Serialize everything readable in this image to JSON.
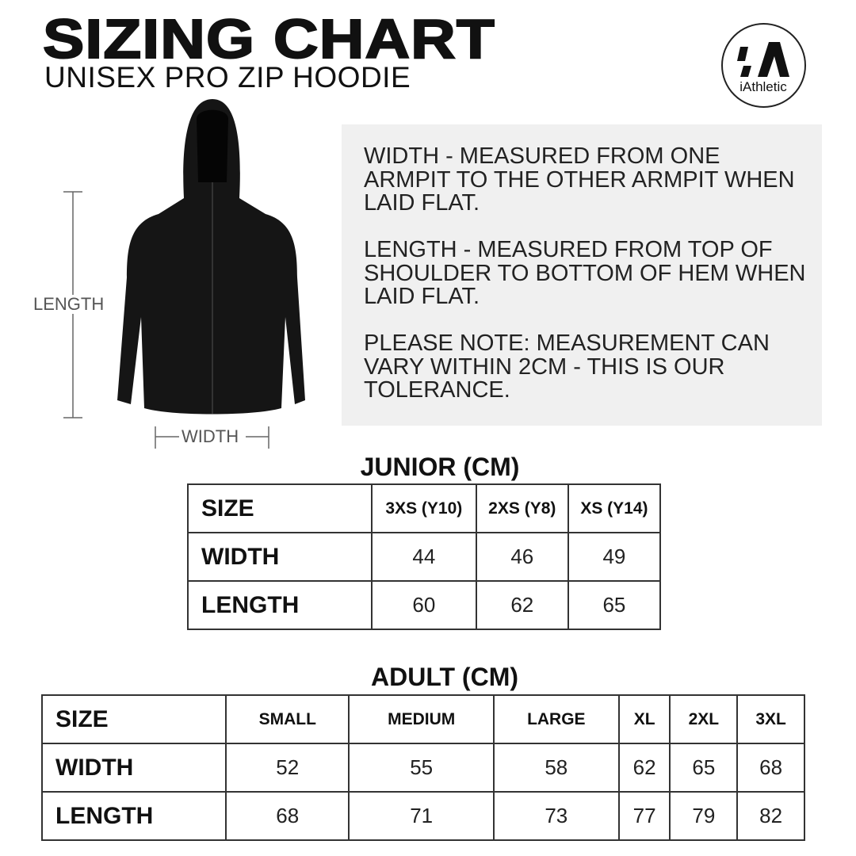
{
  "header": {
    "title": "SIZING CHART",
    "subtitle": "UNISEX PRO ZIP HOODIE"
  },
  "logo": {
    "text": "iAthletic",
    "mark": "iA"
  },
  "diagram": {
    "length_label": "LENGTH",
    "width_label": "WIDTH"
  },
  "info": [
    "WIDTH - MEASURED FROM ONE ARMPIT TO THE OTHER ARMPIT WHEN LAID FLAT.",
    "LENGTH - MEASURED FROM TOP OF SHOULDER TO BOTTOM OF HEM WHEN LAID FLAT.",
    "PLEASE NOTE: MEASUREMENT CAN VARY WITHIN 2CM - THIS IS OUR TOLERANCE."
  ],
  "junior": {
    "title": "JUNIOR (CM)",
    "headers": [
      "SIZE",
      "3XS (Y10)",
      "2XS (Y8)",
      "XS (Y14)"
    ],
    "rows": [
      [
        "WIDTH",
        "44",
        "46",
        "49"
      ],
      [
        "LENGTH",
        "60",
        "62",
        "65"
      ]
    ]
  },
  "adult": {
    "title": "ADULT (CM)",
    "headers": [
      "SIZE",
      "SMALL",
      "MEDIUM",
      "LARGE",
      "XL",
      "2XL",
      "3XL"
    ],
    "rows": [
      [
        "WIDTH",
        "52",
        "55",
        "58",
        "62",
        "65",
        "68"
      ],
      [
        "LENGTH",
        "68",
        "71",
        "73",
        "77",
        "79",
        "82"
      ]
    ]
  }
}
